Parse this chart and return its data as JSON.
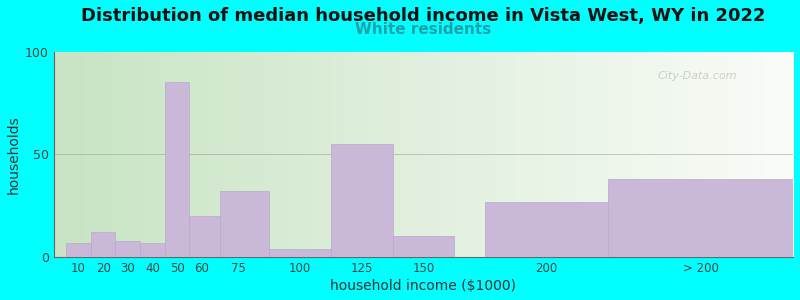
{
  "title": "Distribution of median household income in Vista West, WY in 2022",
  "subtitle": "White residents",
  "xlabel": "household income ($1000)",
  "ylabel": "households",
  "background_color": "#00FFFF",
  "bar_color": "#c9b8d8",
  "bar_edgecolor": "#b8a8cc",
  "values": [
    7,
    12,
    8,
    7,
    85,
    20,
    32,
    4,
    55,
    10,
    27,
    38
  ],
  "bar_lefts": [
    5,
    15,
    25,
    35,
    45,
    55,
    67.5,
    87.5,
    112.5,
    137.5,
    175,
    225
  ],
  "bar_widths": [
    10,
    10,
    10,
    10,
    10,
    12.5,
    20,
    25,
    25,
    25,
    50,
    75
  ],
  "ylim": [
    0,
    100
  ],
  "yticks": [
    0,
    50,
    100
  ],
  "xtick_labels": [
    "10",
    "20",
    "30",
    "40",
    "50",
    "60",
    "75",
    "100",
    "125",
    "150",
    "200",
    "> 200"
  ],
  "xtick_positions": [
    10,
    20,
    30,
    40,
    50,
    60,
    75,
    100,
    125,
    150,
    200,
    262.5
  ],
  "xlim": [
    0,
    300
  ],
  "title_fontsize": 13,
  "subtitle_fontsize": 11,
  "subtitle_color": "#20a0a8",
  "watermark_text": "City-Data.com"
}
